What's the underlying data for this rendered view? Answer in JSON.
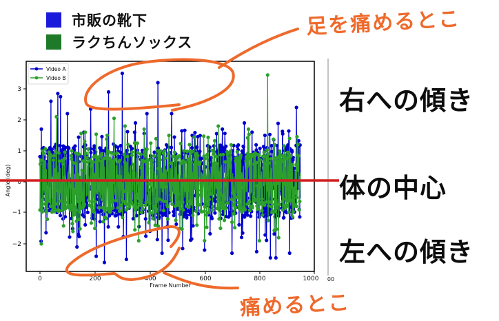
{
  "legend_top": {
    "items": [
      {
        "label": "市販の靴下",
        "color": "#1a1adb"
      },
      {
        "label": "ラクちんソックス",
        "color": "#1e7a28"
      }
    ]
  },
  "side_labels": {
    "right_tilt": "右への傾き",
    "center": "体の中心",
    "left_tilt": "左への傾き"
  },
  "annotations": {
    "top": "足を痛めるとこ",
    "bottom": "痛めるとこ",
    "color": "#ee6a2c"
  },
  "reference_line": {
    "label": "体の中心",
    "y": 0,
    "color": "#d21f1f"
  },
  "stray_tick_label": "00",
  "chart_data": {
    "type": "line",
    "title": "",
    "xlabel": "Frame Number",
    "ylabel": "Angle (deg)",
    "xlim": [
      -50,
      1000
    ],
    "ylim": [
      -2.9,
      3.8
    ],
    "xticks": [
      0,
      200,
      400,
      600,
      800,
      1000
    ],
    "yticks": [
      -2,
      -1,
      0,
      1,
      2,
      3
    ],
    "grid": false,
    "legend": {
      "position": "upper left",
      "entries": [
        "Video A",
        "Video B"
      ]
    },
    "series": [
      {
        "name": "Video A",
        "color": "#0000cc",
        "marker": "o",
        "note": "approx. 950 frames of noisy angle data oscillating about 0; representative extrema sampled below",
        "x": [
          5,
          40,
          65,
          75,
          100,
          135,
          160,
          185,
          205,
          235,
          250,
          300,
          315,
          345,
          390,
          430,
          445,
          480,
          520,
          555,
          600,
          665,
          700,
          745,
          790,
          820,
          840,
          860,
          885,
          910,
          935
        ],
        "y": [
          1.7,
          2.6,
          2.85,
          2.75,
          2.2,
          -2.1,
          1.6,
          2.35,
          -2.4,
          -2.6,
          2.9,
          3.5,
          -2.5,
          1.6,
          2.2,
          3.2,
          -2.3,
          2.2,
          -2.15,
          1.5,
          -2.2,
          1.7,
          -2.3,
          1.9,
          -2.25,
          1.5,
          -2.45,
          -2.45,
          1.55,
          -2.3,
          2.4
        ]
      },
      {
        "name": "Video B",
        "color": "#2ca02c",
        "marker": "o",
        "note": "approx. 950 frames of noisy angle data oscillating about 0; representative extrema sampled below",
        "x": [
          5,
          10,
          60,
          120,
          165,
          200,
          245,
          270,
          310,
          360,
          380,
          420,
          470,
          510,
          545,
          600,
          650,
          700,
          760,
          800,
          830,
          870,
          910,
          940
        ],
        "y": [
          -2.0,
          1.0,
          2.1,
          -1.6,
          1.6,
          -1.5,
          1.5,
          2.05,
          1.8,
          -1.9,
          1.7,
          -1.4,
          1.5,
          -1.5,
          1.2,
          -1.9,
          1.8,
          -1.3,
          1.7,
          -1.9,
          3.45,
          -1.8,
          1.4,
          1.2
        ]
      }
    ]
  }
}
